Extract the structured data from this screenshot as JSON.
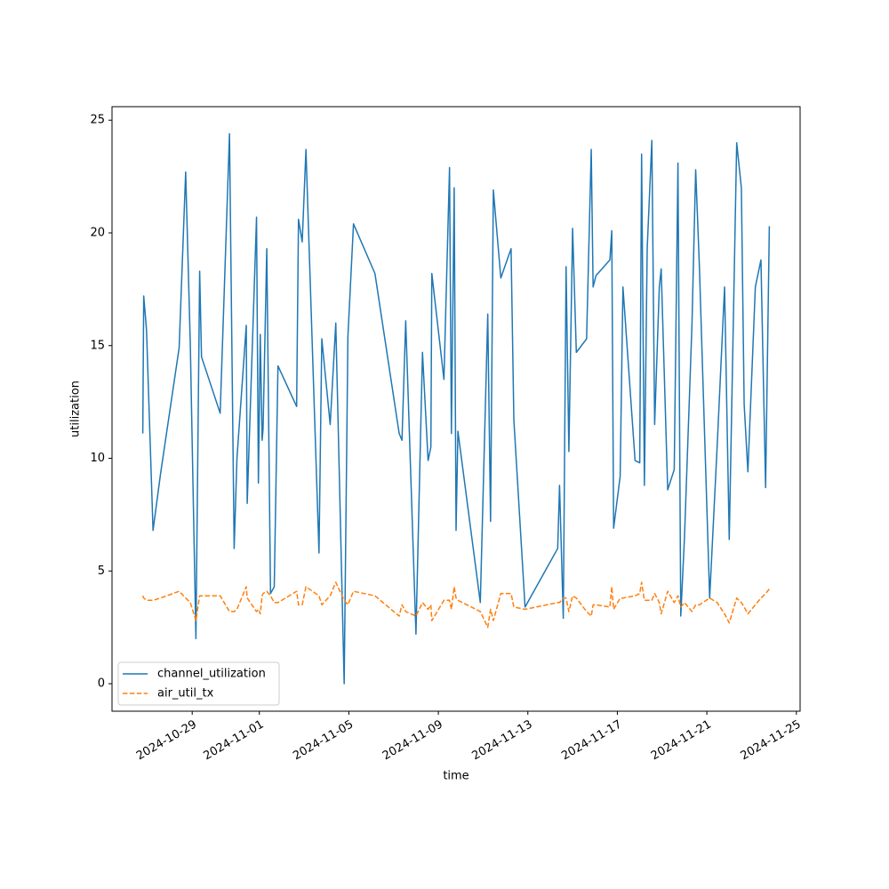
{
  "chart_data": {
    "type": "line",
    "xlabel": "time",
    "ylabel": "utilization",
    "x": [
      "2024-10-26T19:00",
      "2024-10-26T20:00",
      "2024-10-26T23:00",
      "2024-10-27T06:00",
      "2024-10-27T14:00",
      "2024-10-28T10:00",
      "2024-10-28T17:00",
      "2024-10-28T22:00",
      "2024-10-29T04:00",
      "2024-10-29T08:00",
      "2024-10-29T10:00",
      "2024-10-30T06:00",
      "2024-10-30T16:00",
      "2024-10-30T21:00",
      "2024-10-31T00:00",
      "2024-10-31T10:00",
      "2024-10-31T11:00",
      "2024-10-31T21:00",
      "2024-10-31T23:00",
      "2024-11-01T01:00",
      "2024-11-01T03:00",
      "2024-11-01T04:00",
      "2024-11-01T08:00",
      "2024-11-01T12:00",
      "2024-11-01T16:00",
      "2024-11-01T20:00",
      "2024-11-02T16:00",
      "2024-11-02T18:00",
      "2024-11-02T22:00",
      "2024-11-03T02:00",
      "2024-11-03T16:00",
      "2024-11-03T19:00",
      "2024-11-04T04:00",
      "2024-11-04T10:00",
      "2024-11-04T19:00",
      "2024-11-04T23:00",
      "2024-11-05T05:00",
      "2024-11-06T04:00",
      "2024-11-07T06:00",
      "2024-11-07T09:00",
      "2024-11-07T13:00",
      "2024-11-08T00:00",
      "2024-11-08T07:00",
      "2024-11-08T13:00",
      "2024-11-08T16:00",
      "2024-11-08T17:00",
      "2024-11-09T06:00",
      "2024-11-09T12:00",
      "2024-11-09T14:00",
      "2024-11-09T17:00",
      "2024-11-09T19:00",
      "2024-11-09T21:00",
      "2024-11-10T21:00",
      "2024-11-11T05:00",
      "2024-11-11T08:00",
      "2024-11-11T11:00",
      "2024-11-11T19:00",
      "2024-11-12T06:00",
      "2024-11-12T09:00",
      "2024-11-12T21:00",
      "2024-11-14T08:00",
      "2024-11-14T10:00",
      "2024-11-14T14:00",
      "2024-11-14T17:00",
      "2024-11-14T20:00",
      "2024-11-15T00:00",
      "2024-11-15T04:00",
      "2024-11-15T15:00",
      "2024-11-15T20:00",
      "2024-11-15T22:00",
      "2024-11-16T01:00",
      "2024-11-16T16:00",
      "2024-11-16T18:00",
      "2024-11-16T20:00",
      "2024-11-17T03:00",
      "2024-11-17T06:00",
      "2024-11-17T19:00",
      "2024-11-18T00:00",
      "2024-11-18T02:00",
      "2024-11-18T05:00",
      "2024-11-18T08:00",
      "2024-11-18T13:00",
      "2024-11-18T16:00",
      "2024-11-18T21:00",
      "2024-11-18T23:00",
      "2024-11-19T06:00",
      "2024-11-19T13:00",
      "2024-11-19T17:00",
      "2024-11-19T20:00",
      "2024-11-20T00:00",
      "2024-11-20T08:00",
      "2024-11-20T12:00",
      "2024-11-20T16:00",
      "2024-11-21T03:00",
      "2024-11-21T11:00",
      "2024-11-21T19:00",
      "2024-11-22T00:00",
      "2024-11-22T08:00",
      "2024-11-22T13:00",
      "2024-11-22T16:00",
      "2024-11-22T20:00",
      "2024-11-23T04:00",
      "2024-11-23T10:00",
      "2024-11-23T15:00",
      "2024-11-23T19:00"
    ],
    "series": [
      {
        "name": "channel_utilization",
        "color": "#1f77b4",
        "linestyle": "solid",
        "values": [
          11.1,
          17.2,
          15.7,
          6.8,
          9.3,
          14.9,
          22.7,
          15,
          2.0,
          18.3,
          14.5,
          12.0,
          24.4,
          6.0,
          10,
          15.9,
          8.0,
          20.7,
          8.9,
          15.5,
          10.8,
          11.3,
          19.3,
          4.0,
          4.3,
          14.1,
          12.3,
          20.6,
          19.6,
          23.7,
          5.8,
          15.3,
          11.5,
          16.0,
          0.0,
          15.4,
          20.4,
          18.2,
          11.1,
          10.8,
          16.1,
          2.2,
          14.7,
          9.9,
          10.5,
          18.2,
          13.5,
          22.9,
          11.1,
          22.0,
          6.8,
          11.2,
          3.6,
          16.4,
          7.2,
          21.9,
          18.0,
          19.3,
          11.7,
          3.4,
          6.0,
          8.8,
          2.9,
          18.5,
          10.3,
          20.2,
          14.7,
          15.3,
          23.7,
          17.6,
          18.1,
          18.8,
          20.1,
          6.9,
          9.2,
          17.6,
          9.9,
          9.8,
          23.5,
          8.8,
          19.3,
          24.1,
          11.5,
          17.6,
          18.4,
          8.6,
          9.5,
          23.1,
          3.0,
          6.5,
          15.9,
          22.8,
          18.5,
          3.8,
          10.5,
          17.6,
          6.4,
          24.0,
          22.0,
          12.4,
          9.4,
          17.6,
          18.8,
          8.7,
          20.3
        ]
      },
      {
        "name": "air_util_tx",
        "color": "#ff7f0e",
        "linestyle": "dashed",
        "values": [
          3.9,
          3.8,
          3.7,
          3.7,
          3.8,
          4.1,
          3.8,
          3.6,
          2.8,
          3.9,
          3.9,
          3.9,
          3.2,
          3.2,
          3.3,
          4.3,
          3.8,
          3.2,
          3.3,
          3.1,
          3.9,
          4.0,
          4.1,
          3.9,
          3.6,
          3.6,
          4.1,
          3.5,
          3.5,
          4.3,
          3.9,
          3.5,
          3.9,
          4.5,
          3.7,
          3.5,
          4.1,
          3.9,
          3.0,
          3.5,
          3.2,
          3.0,
          3.6,
          3.3,
          3.5,
          2.8,
          3.7,
          3.7,
          3.3,
          4.3,
          3.8,
          3.7,
          3.2,
          2.5,
          3.3,
          2.8,
          4.0,
          4.0,
          3.4,
          3.3,
          3.6,
          3.6,
          3.8,
          3.8,
          3.2,
          3.9,
          3.8,
          3.2,
          3.0,
          3.5,
          3.5,
          3.4,
          4.3,
          3.3,
          3.8,
          3.8,
          3.9,
          4.0,
          4.5,
          3.7,
          3.7,
          3.7,
          4.0,
          3.6,
          3.1,
          4.1,
          3.6,
          3.9,
          3.4,
          3.6,
          3.2,
          3.5,
          3.5,
          3.8,
          3.6,
          3.1,
          2.7,
          3.8,
          3.6,
          3.4,
          3.1,
          3.5,
          3.8,
          4.0,
          4.2
        ]
      }
    ],
    "xlim": [
      "2024-10-25T10:00",
      "2024-11-25T04:00"
    ],
    "xticks": [
      "2024-10-29",
      "2024-11-01",
      "2024-11-05",
      "2024-11-09",
      "2024-11-13",
      "2024-11-17",
      "2024-11-21",
      "2024-11-25"
    ],
    "ylim": [
      -1.22,
      25.6
    ],
    "yticks": [
      0,
      5,
      10,
      15,
      20,
      25
    ],
    "legend": "lower left",
    "grid": false
  }
}
